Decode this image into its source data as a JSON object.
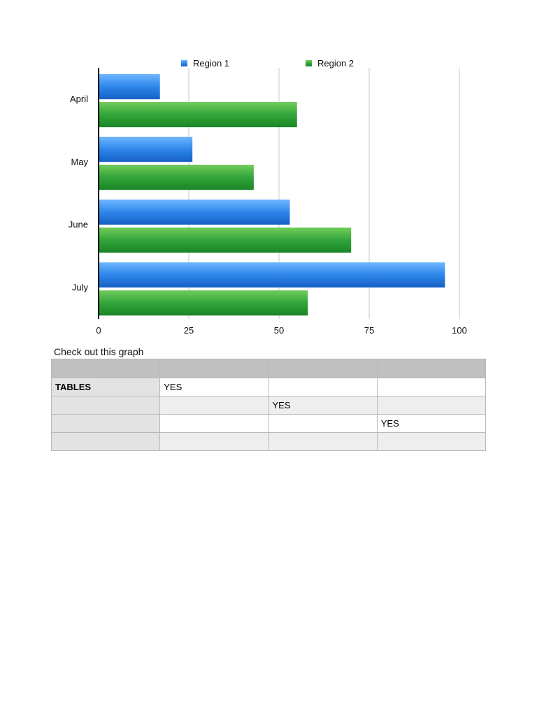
{
  "chart_data": {
    "type": "bar",
    "orientation": "horizontal",
    "categories": [
      "April",
      "May",
      "June",
      "July"
    ],
    "series": [
      {
        "name": "Region 1",
        "values": [
          17,
          26,
          53,
          96
        ],
        "color": "#2a7fe0"
      },
      {
        "name": "Region 2",
        "values": [
          55,
          43,
          70,
          58
        ],
        "color": "#2e9c32"
      }
    ],
    "xticks": [
      "0",
      "25",
      "50",
      "75",
      "100"
    ],
    "xlim": [
      0,
      100
    ],
    "grid": true,
    "legend_position": "top"
  },
  "caption": "Check out this graph",
  "table": {
    "header": [
      "",
      "",
      "",
      ""
    ],
    "rows": [
      [
        "TABLES",
        "YES",
        "",
        ""
      ],
      [
        "",
        "",
        "YES",
        ""
      ],
      [
        "",
        "",
        "",
        "YES"
      ],
      [
        "",
        "",
        "",
        ""
      ]
    ]
  }
}
